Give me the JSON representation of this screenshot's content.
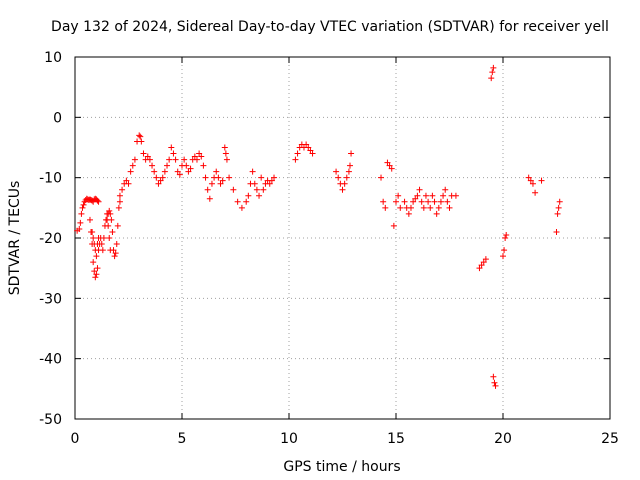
{
  "chart_data": {
    "type": "scatter",
    "title": "Day 132 of 2024, Sidereal Day-to-day VTEC variation (SDTVAR) for receiver yell",
    "xlabel": "GPS time / hours",
    "ylabel": "SDTVAR / TECUs",
    "xlim": [
      0,
      25
    ],
    "ylim": [
      -50,
      10
    ],
    "xticks": [
      0,
      5,
      10,
      15,
      20,
      25
    ],
    "yticks": [
      -50,
      -40,
      -30,
      -20,
      -10,
      0,
      10
    ],
    "xtick_labels": [
      "0",
      "5",
      "10",
      "15",
      "20",
      "25"
    ],
    "ytick_labels": [
      "-50",
      "-40",
      "-30",
      "-20",
      "-10",
      "0",
      "10"
    ],
    "grid": true,
    "marker": "plus",
    "color": "#ff0000",
    "series": [
      {
        "name": "SDTVAR",
        "x": [
          0.1,
          0.2,
          0.25,
          0.3,
          0.35,
          0.4,
          0.45,
          0.5,
          0.55,
          0.6,
          0.65,
          0.7,
          0.75,
          0.8,
          0.85,
          0.9,
          0.95,
          1.0,
          1.05,
          1.1,
          0.7,
          0.75,
          0.8,
          0.85,
          0.9,
          0.95,
          1.0,
          1.05,
          1.1,
          1.15,
          1.2,
          1.25,
          1.3,
          1.35,
          1.4,
          1.45,
          1.5,
          1.55,
          1.6,
          1.65,
          0.8,
          0.85,
          0.9,
          0.95,
          1.0,
          1.05,
          1.1,
          1.5,
          1.55,
          1.6,
          1.65,
          1.7,
          1.75,
          1.8,
          1.85,
          1.9,
          1.95,
          2.0,
          2.05,
          2.1,
          2.1,
          2.2,
          2.3,
          2.4,
          2.5,
          2.6,
          2.7,
          2.8,
          2.9,
          3.0,
          3.05,
          3.1,
          3.2,
          3.3,
          3.4,
          3.5,
          3.6,
          3.7,
          3.8,
          3.9,
          4.0,
          4.1,
          4.2,
          4.3,
          4.4,
          4.5,
          4.6,
          4.7,
          4.8,
          4.9,
          5.0,
          5.1,
          5.2,
          5.3,
          5.4,
          5.5,
          5.6,
          5.7,
          5.8,
          5.9,
          6.0,
          6.1,
          6.2,
          6.3,
          6.4,
          6.5,
          6.6,
          6.7,
          6.8,
          6.9,
          7.0,
          7.05,
          7.1,
          7.2,
          7.4,
          7.6,
          7.8,
          8.0,
          8.1,
          8.2,
          8.3,
          8.4,
          8.5,
          8.6,
          8.7,
          8.8,
          8.9,
          9.0,
          9.1,
          9.2,
          9.3,
          10.3,
          10.4,
          10.5,
          10.6,
          10.7,
          10.8,
          10.9,
          11.0,
          11.1,
          12.2,
          12.3,
          12.4,
          12.5,
          12.6,
          12.7,
          12.8,
          12.85,
          12.9,
          14.3,
          14.4,
          14.5,
          14.6,
          14.7,
          14.8,
          14.9,
          15.0,
          15.1,
          15.2,
          15.4,
          15.5,
          15.6,
          15.7,
          15.8,
          15.9,
          16.0,
          16.1,
          16.2,
          16.3,
          16.4,
          16.5,
          16.6,
          16.7,
          16.8,
          16.9,
          17.0,
          17.1,
          17.2,
          17.3,
          17.4,
          17.5,
          17.6,
          17.8,
          18.9,
          19.0,
          19.1,
          19.2,
          19.45,
          19.5,
          19.55,
          19.55,
          19.6,
          19.65,
          20.0,
          20.05,
          20.1,
          20.15,
          21.2,
          21.3,
          21.4,
          21.5,
          21.8,
          22.5,
          22.55,
          22.6,
          22.65
        ],
        "y": [
          -18.8,
          -18.5,
          -17.5,
          -16,
          -15,
          -14.5,
          -14,
          -13.7,
          -13.5,
          -13.6,
          -13.7,
          -13.6,
          -13.7,
          -13.8,
          -14,
          -13.6,
          -13.5,
          -13.6,
          -13.8,
          -14,
          -17,
          -19,
          -21,
          -24,
          -25.5,
          -26.5,
          -26,
          -25,
          -22,
          -21,
          -20,
          -21,
          -22,
          -20,
          -18,
          -17,
          -16,
          -18,
          -20,
          -22,
          -19,
          -20,
          -21,
          -22,
          -23,
          -21,
          -20,
          -17,
          -16,
          -15.5,
          -16,
          -17,
          -19,
          -22,
          -23,
          -22.5,
          -21,
          -18,
          -15,
          -14,
          -13,
          -12,
          -11,
          -10.5,
          -11,
          -9,
          -8,
          -7,
          -4,
          -3,
          -3.2,
          -4,
          -6,
          -7,
          -6.5,
          -7,
          -8,
          -9,
          -10,
          -11,
          -10.5,
          -10,
          -9,
          -8,
          -7,
          -5,
          -6,
          -7,
          -9,
          -9.5,
          -8,
          -7,
          -8,
          -9,
          -8.5,
          -7,
          -6.5,
          -7,
          -6,
          -6.5,
          -8,
          -10,
          -12,
          -13.5,
          -11,
          -10,
          -9,
          -10,
          -11,
          -10.5,
          -5,
          -6,
          -7,
          -10,
          -12,
          -14,
          -15,
          -14,
          -13,
          -11,
          -9,
          -11,
          -12,
          -13,
          -10,
          -12,
          -11,
          -10.5,
          -11,
          -10.5,
          -10,
          -7,
          -6,
          -5,
          -4.5,
          -5,
          -4.5,
          -5,
          -5.5,
          -6,
          -9,
          -10,
          -11,
          -12,
          -11,
          -10,
          -9,
          -8,
          -6,
          -10,
          -14,
          -15,
          -7.5,
          -8,
          -8.5,
          -18,
          -14,
          -13,
          -15,
          -14,
          -15,
          -16,
          -15,
          -14,
          -13.5,
          -13,
          -12,
          -14,
          -15,
          -13,
          -14,
          -15,
          -13,
          -14,
          -16,
          -15,
          -14,
          -13,
          -12,
          -14,
          -15,
          -13,
          -13,
          -25,
          -24.5,
          -24,
          -23.5,
          6.5,
          7.5,
          8.2,
          -43,
          -44,
          -44.5,
          -23,
          -22,
          -20,
          -19.5,
          -10,
          -10.5,
          -11,
          -12.5,
          -10.5,
          -19,
          -16,
          -15,
          -14
        ]
      }
    ]
  }
}
